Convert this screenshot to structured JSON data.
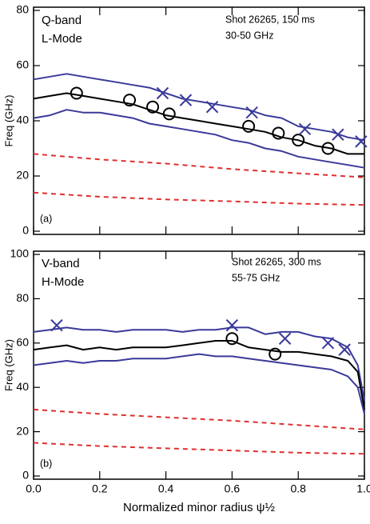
{
  "chart_data": [
    {
      "type": "line",
      "ylabel": "Freq (GHz)",
      "xlim": [
        0,
        1
      ],
      "xticks": [
        0,
        0.2,
        0.4,
        0.6,
        0.8,
        1
      ],
      "ylim": [
        0,
        80
      ],
      "yticks": [
        0,
        20,
        40,
        60,
        80
      ],
      "annotations": [
        "Q-band",
        "L-Mode",
        "Shot 26265, 150 ms",
        "30-50 GHz",
        "(a)"
      ],
      "series": [
        {
          "color": "#3a3a9a",
          "x": [
            0,
            0.05,
            0.1,
            0.15,
            0.2,
            0.25,
            0.3,
            0.35,
            0.4,
            0.45,
            0.5,
            0.55,
            0.6,
            0.65,
            0.7,
            0.75,
            0.8,
            0.85,
            0.9,
            0.95,
            1
          ],
          "values": [
            55,
            56,
            57,
            56,
            55,
            54,
            53,
            52,
            50,
            48,
            47,
            46,
            45,
            44,
            42,
            41,
            38,
            37,
            36,
            34,
            33
          ]
        },
        {
          "color": "#000000",
          "x": [
            0,
            0.05,
            0.1,
            0.15,
            0.2,
            0.25,
            0.3,
            0.35,
            0.4,
            0.45,
            0.5,
            0.55,
            0.6,
            0.65,
            0.7,
            0.75,
            0.8,
            0.85,
            0.9,
            0.95,
            1
          ],
          "values": [
            48,
            49,
            50,
            49,
            48,
            47,
            46,
            44,
            42,
            41,
            40,
            39,
            38,
            37,
            36,
            34,
            33,
            31,
            30,
            28,
            28
          ]
        },
        {
          "color": "#3a3a9a",
          "x": [
            0,
            0.05,
            0.1,
            0.15,
            0.2,
            0.25,
            0.3,
            0.35,
            0.4,
            0.45,
            0.5,
            0.55,
            0.6,
            0.65,
            0.7,
            0.75,
            0.8,
            0.85,
            0.9,
            0.95,
            1
          ],
          "values": [
            41,
            42,
            44,
            43,
            43,
            42,
            41,
            39,
            38,
            37,
            36,
            35,
            33,
            32,
            30,
            29,
            27,
            26,
            25,
            24,
            23
          ]
        },
        {
          "color": "#e03030",
          "dashed": true,
          "x": [
            0,
            0.2,
            0.4,
            0.6,
            0.8,
            1
          ],
          "values": [
            28,
            26,
            24.5,
            22.5,
            21,
            19.5
          ]
        },
        {
          "color": "#e03030",
          "dashed": true,
          "x": [
            0,
            0.2,
            0.4,
            0.6,
            0.8,
            1
          ],
          "values": [
            14,
            12.5,
            11.5,
            10.8,
            10,
            9.5
          ]
        },
        {
          "color": "#000000",
          "marker": "circle",
          "x": [
            0.13,
            0.29,
            0.36,
            0.41,
            0.65,
            0.74,
            0.8,
            0.89
          ],
          "values": [
            50,
            47.5,
            45,
            42.5,
            38,
            35.5,
            33,
            30
          ]
        },
        {
          "color": "#3a3a9a",
          "marker": "x",
          "x": [
            0.39,
            0.46,
            0.54,
            0.66,
            0.82,
            0.92,
            0.99
          ],
          "values": [
            50,
            47.5,
            45,
            43,
            37,
            35,
            32.5
          ]
        }
      ]
    },
    {
      "type": "line",
      "ylabel": "Freq (GHz)",
      "xlabel": "Normalized minor radius ψ½",
      "xlim": [
        0,
        1
      ],
      "xticks": [
        {
          "value": 0,
          "label": "0.0"
        },
        0.2,
        0.4,
        0.6,
        0.8,
        {
          "value": 1,
          "label": "1.0"
        }
      ],
      "ylim": [
        0,
        100
      ],
      "yticks": [
        0,
        20,
        40,
        60,
        80,
        100
      ],
      "annotations": [
        "V-band",
        "H-Mode",
        "Shot 26265, 300 ms",
        "55-75 GHz",
        "(b)"
      ],
      "series": [
        {
          "color": "#3a3a9a",
          "x": [
            0,
            0.05,
            0.1,
            0.15,
            0.2,
            0.25,
            0.3,
            0.35,
            0.4,
            0.45,
            0.5,
            0.55,
            0.6,
            0.65,
            0.7,
            0.75,
            0.8,
            0.85,
            0.9,
            0.95,
            0.98,
            1
          ],
          "values": [
            65,
            66,
            67,
            66,
            66,
            65,
            66,
            66,
            66,
            65,
            66,
            66,
            67,
            67,
            64,
            65,
            65,
            63,
            62,
            58,
            50,
            34
          ]
        },
        {
          "color": "#000000",
          "x": [
            0,
            0.05,
            0.1,
            0.15,
            0.2,
            0.25,
            0.3,
            0.35,
            0.4,
            0.45,
            0.5,
            0.55,
            0.6,
            0.65,
            0.7,
            0.75,
            0.8,
            0.85,
            0.9,
            0.95,
            0.98,
            1
          ],
          "values": [
            57,
            58,
            59,
            57,
            58,
            57,
            58,
            58,
            58,
            59,
            60,
            61,
            61,
            58,
            57,
            56,
            56,
            55,
            54,
            52,
            47,
            30
          ]
        },
        {
          "color": "#3a3a9a",
          "x": [
            0,
            0.05,
            0.1,
            0.15,
            0.2,
            0.25,
            0.3,
            0.35,
            0.4,
            0.45,
            0.5,
            0.55,
            0.6,
            0.65,
            0.7,
            0.75,
            0.8,
            0.85,
            0.9,
            0.95,
            0.98,
            1
          ],
          "values": [
            50,
            51,
            52,
            51,
            52,
            52,
            53,
            53,
            53,
            54,
            55,
            54,
            54,
            53,
            52,
            51,
            50,
            49,
            48,
            45,
            40,
            28
          ]
        },
        {
          "color": "#e03030",
          "dashed": true,
          "x": [
            0,
            0.2,
            0.4,
            0.6,
            0.8,
            1
          ],
          "values": [
            30,
            28,
            26.5,
            25,
            23,
            21
          ]
        },
        {
          "color": "#e03030",
          "dashed": true,
          "x": [
            0,
            0.2,
            0.4,
            0.6,
            0.8,
            1
          ],
          "values": [
            15,
            13.5,
            12.5,
            11.5,
            10.5,
            10
          ]
        },
        {
          "color": "#000000",
          "marker": "circle",
          "x": [
            0.6,
            0.73
          ],
          "values": [
            62,
            55
          ]
        },
        {
          "color": "#3a3a9a",
          "marker": "x",
          "x": [
            0.07,
            0.6,
            0.76,
            0.89,
            0.94
          ],
          "values": [
            68,
            68,
            62,
            60,
            57
          ]
        }
      ]
    }
  ]
}
